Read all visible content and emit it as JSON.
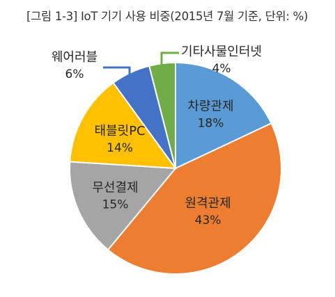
{
  "title": "[그림 1-3] IoT 기기 사용 비중(2015년 7월 기준, 단위: %)",
  "chart_data": {
    "type": "pie",
    "title": "[그림 1-3] IoT 기기 사용 비중(2015년 7월 기준, 단위: %)",
    "unit": "%",
    "slices": [
      {
        "label": "차량관제",
        "value": 18,
        "value_label": "18%",
        "color": "#5b9bd5"
      },
      {
        "label": "원격관제",
        "value": 43,
        "value_label": "43%",
        "color": "#ed7d31"
      },
      {
        "label": "무선결제",
        "value": 15,
        "value_label": "15%",
        "color": "#a5a5a5"
      },
      {
        "label": "태블릿PC",
        "value": 14,
        "value_label": "14%",
        "color": "#ffc000"
      },
      {
        "label": "웨어러블",
        "value": 6,
        "value_label": "6%",
        "color": "#4472c4"
      },
      {
        "label": "기타사물인터넷",
        "value": 4,
        "value_label": "4%",
        "color": "#70ad47"
      }
    ],
    "start_angle_deg": 0,
    "direction": "clockwise",
    "labels_outside": [
      "웨어러블",
      "기타사물인터넷"
    ]
  }
}
